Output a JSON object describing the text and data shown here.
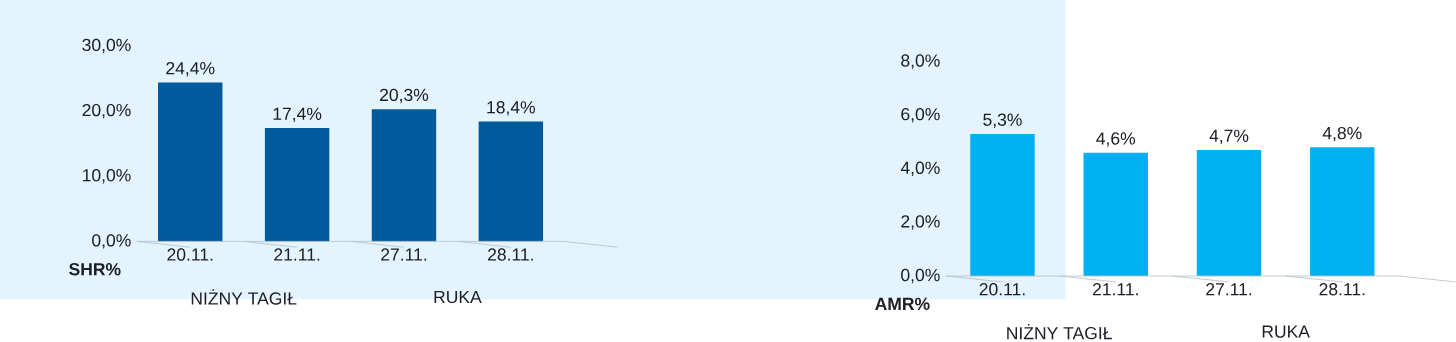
{
  "chart_data": [
    {
      "type": "bar",
      "ylabel": "SHR%",
      "categories": [
        "20.11.",
        "21.11.",
        "27.11.",
        "28.11."
      ],
      "values": [
        24.4,
        17.4,
        20.3,
        18.4
      ],
      "value_labels": [
        "24,4%",
        "17,4%",
        "20,3%",
        "18,4%"
      ],
      "color": "#005a9c",
      "ylim": [
        0,
        30
      ],
      "yticks": [
        {
          "value": 0,
          "label": "0,0%"
        },
        {
          "value": 10,
          "label": "10,0%"
        },
        {
          "value": 20,
          "label": "20,0%"
        },
        {
          "value": 30,
          "label": "30,0%"
        }
      ],
      "annotations": [
        "NIŻNY TAGIŁ",
        "RUKA"
      ]
    },
    {
      "type": "bar",
      "ylabel": "AMR%",
      "categories": [
        "20.11.",
        "21.11.",
        "27.11.",
        "28.11."
      ],
      "values": [
        5.3,
        4.6,
        4.7,
        4.8
      ],
      "value_labels": [
        "5,3%",
        "4,6%",
        "4,7%",
        "4,8%"
      ],
      "color": "#00b0f0",
      "ylim": [
        0,
        8
      ],
      "yticks": [
        {
          "value": 0,
          "label": "0,0%"
        },
        {
          "value": 2,
          "label": "2,0%"
        },
        {
          "value": 4,
          "label": "4,0%"
        },
        {
          "value": 6,
          "label": "6,0%"
        },
        {
          "value": 8,
          "label": "8,0%"
        }
      ],
      "annotations": [
        "NIŻNY TAGIŁ",
        "RUKA"
      ]
    }
  ]
}
